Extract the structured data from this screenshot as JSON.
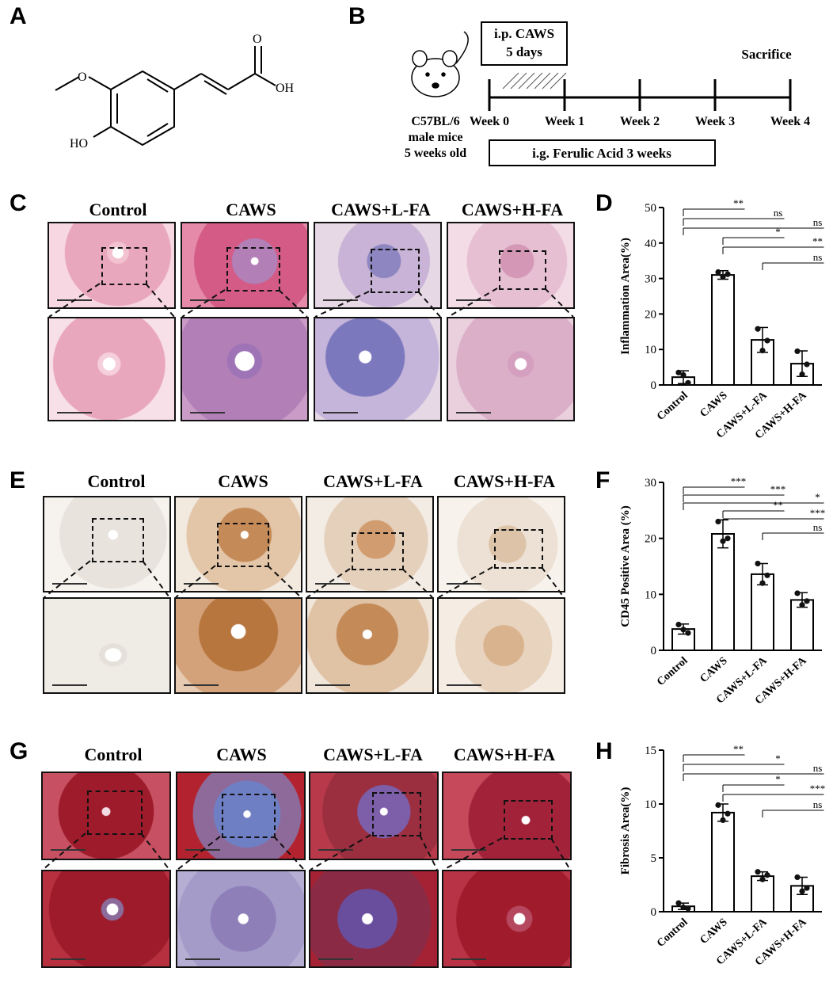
{
  "panels": {
    "A": "A",
    "B": "B",
    "C": "C",
    "D": "D",
    "E": "E",
    "F": "F",
    "G": "G",
    "H": "H"
  },
  "structure": {
    "oh_label": "OH",
    "ho_label": "HO",
    "o_label": "O"
  },
  "timeline": {
    "ip_label": "i.p. CAWS",
    "ip_days": "5 days",
    "sacrifice": "Sacrifice",
    "mice_lines": [
      "C57BL/6",
      "male mice",
      "5 weeks old"
    ],
    "weeks": [
      "Week 0",
      "Week 1",
      "Week 2",
      "Week 3",
      "Week 4"
    ],
    "ig_label": "i.g. Ferulic Acid 3 weeks"
  },
  "groups": [
    "Control",
    "CAWS",
    "CAWS+L-FA",
    "CAWS+H-FA"
  ],
  "stain_colors": {
    "he_normal": "#e9a7bd",
    "he_inflamed": "#b27fb7",
    "ihc_bg": "#f1ece6",
    "ihc_pos": "#c48a58",
    "masson_muscle": "#9d1b2a",
    "masson_collagen": "#6f7fc4"
  },
  "chart_data": [
    {
      "type": "bar",
      "panel": "D",
      "ylabel": "Inflammation Area(%)",
      "ylim": [
        0,
        50
      ],
      "yticks": [
        0,
        10,
        20,
        30,
        40,
        50
      ],
      "categories": [
        "Control",
        "CAWS",
        "CAWS+L-FA",
        "CAWS+H-FA"
      ],
      "values": [
        2.2,
        31.0,
        12.7,
        6.0
      ],
      "errors": [
        1.8,
        1.2,
        3.5,
        3.6
      ],
      "points": [
        [
          3.5,
          2.8,
          0.6
        ],
        [
          31.8,
          30.5,
          31.2
        ],
        [
          15.8,
          9.7,
          12.5
        ],
        [
          9.5,
          3.0,
          5.8
        ]
      ],
      "significance": [
        {
          "from": 0,
          "to": 1,
          "label": "**"
        },
        {
          "from": 0,
          "to": 2,
          "label": "ns"
        },
        {
          "from": 0,
          "to": 3,
          "label": "ns"
        },
        {
          "from": 1,
          "to": 2,
          "label": "*"
        },
        {
          "from": 1,
          "to": 3,
          "label": "**"
        },
        {
          "from": 2,
          "to": 3,
          "label": "ns"
        }
      ]
    },
    {
      "type": "bar",
      "panel": "F",
      "ylabel": "CD45 Positive Area (%)",
      "ylim": [
        0,
        30
      ],
      "yticks": [
        0,
        10,
        20,
        30
      ],
      "categories": [
        "Control",
        "CAWS",
        "CAWS+L-FA",
        "CAWS+H-FA"
      ],
      "values": [
        3.8,
        20.8,
        13.6,
        9.0
      ],
      "errors": [
        0.9,
        2.5,
        1.9,
        1.3
      ],
      "points": [
        [
          4.6,
          3.7,
          3.1
        ],
        [
          23.0,
          19.5,
          20.0
        ],
        [
          15.5,
          12.0,
          13.4
        ],
        [
          10.2,
          8.1,
          8.8
        ]
      ],
      "significance": [
        {
          "from": 0,
          "to": 1,
          "label": "***"
        },
        {
          "from": 0,
          "to": 2,
          "label": "***"
        },
        {
          "from": 0,
          "to": 3,
          "label": "*"
        },
        {
          "from": 1,
          "to": 2,
          "label": "**"
        },
        {
          "from": 1,
          "to": 3,
          "label": "***"
        },
        {
          "from": 2,
          "to": 3,
          "label": "ns"
        }
      ]
    },
    {
      "type": "bar",
      "panel": "H",
      "ylabel": "Fibrosis Area(%)",
      "ylim": [
        0,
        15
      ],
      "yticks": [
        0,
        5,
        10,
        15
      ],
      "categories": [
        "Control",
        "CAWS",
        "CAWS+L-FA",
        "CAWS+H-FA"
      ],
      "values": [
        0.5,
        9.2,
        3.3,
        2.4
      ],
      "errors": [
        0.3,
        0.8,
        0.4,
        0.8
      ],
      "points": [
        [
          0.8,
          0.4,
          0.3
        ],
        [
          9.9,
          8.5,
          9.1
        ],
        [
          3.7,
          3.0,
          3.4
        ],
        [
          3.2,
          1.9,
          2.2
        ]
      ],
      "significance": [
        {
          "from": 0,
          "to": 1,
          "label": "**"
        },
        {
          "from": 0,
          "to": 2,
          "label": "*"
        },
        {
          "from": 0,
          "to": 3,
          "label": "ns"
        },
        {
          "from": 1,
          "to": 2,
          "label": "*"
        },
        {
          "from": 1,
          "to": 3,
          "label": "***"
        },
        {
          "from": 2,
          "to": 3,
          "label": "ns"
        }
      ]
    }
  ]
}
